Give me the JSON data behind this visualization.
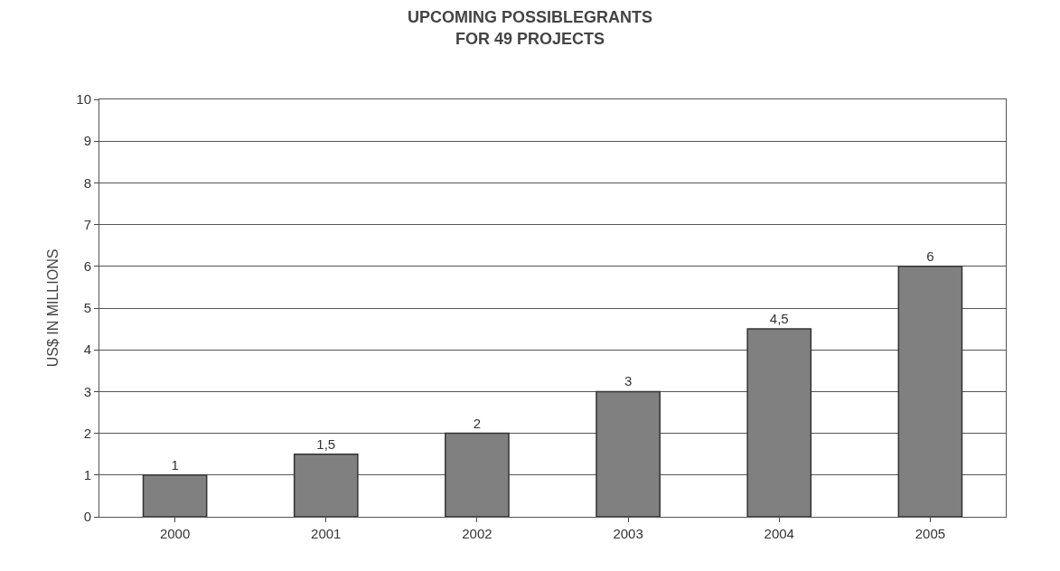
{
  "chart_data": {
    "type": "bar",
    "title": "UPCOMING POSSIBLEGRANTS\nFOR 49 PROJECTS",
    "ylabel": "US$ IN MILLIONS",
    "categories": [
      "2000",
      "2001",
      "2002",
      "2003",
      "2004",
      "2005"
    ],
    "values": [
      1,
      1.5,
      2,
      3,
      4.5,
      6
    ],
    "value_labels": [
      "1",
      "1,5",
      "2",
      "3",
      "4,5",
      "6"
    ],
    "color": "#808080",
    "ylim": [
      0,
      10
    ],
    "yticks": [
      0,
      1,
      2,
      3,
      4,
      5,
      6,
      7,
      8,
      9,
      10
    ],
    "grid": "y",
    "legend": false
  }
}
